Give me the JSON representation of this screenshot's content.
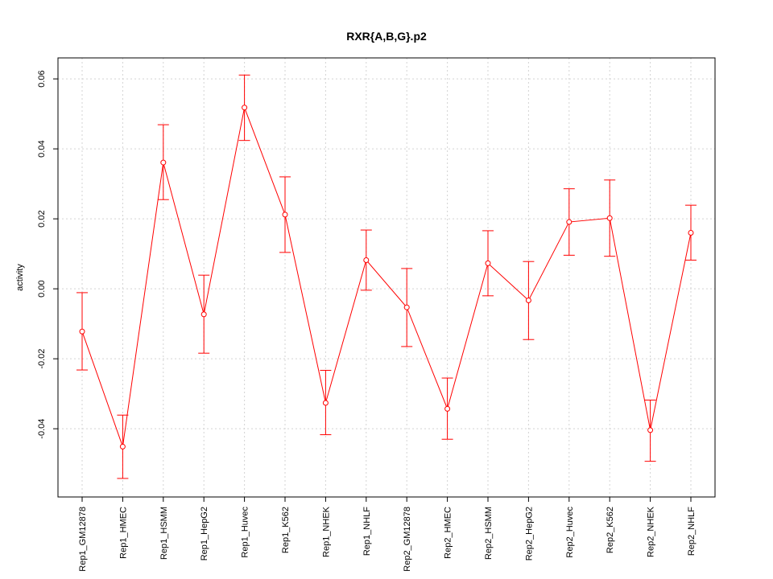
{
  "chart_data": {
    "type": "line",
    "title": "RXR{A,B,G}.p2",
    "xlabel": "",
    "ylabel": "activity",
    "ylim": [
      -0.0595,
      0.066
    ],
    "yticks": [
      -0.04,
      -0.02,
      0.0,
      0.02,
      0.04,
      0.06
    ],
    "ytick_labels": [
      "-0.04",
      "-0.02",
      "0.00",
      "0.02",
      "0.04",
      "0.06"
    ],
    "grid": true,
    "color": "#ff0000",
    "categories": [
      "Rep1_GM12878",
      "Rep1_HMEC",
      "Rep1_HSMM",
      "Rep1_HepG2",
      "Rep1_Huvec",
      "Rep1_K562",
      "Rep1_NHEK",
      "Rep1_NHLF",
      "Rep2_GM12878",
      "Rep2_HMEC",
      "Rep2_HSMM",
      "Rep2_HepG2",
      "Rep2_Huvec",
      "Rep2_K562",
      "Rep2_NHEK",
      "Rep2_NHLF"
    ],
    "values": [
      -0.0122,
      -0.0451,
      0.0361,
      -0.0073,
      0.0518,
      0.0212,
      -0.0326,
      0.0082,
      -0.0053,
      -0.0343,
      0.0073,
      -0.0033,
      0.0191,
      0.0202,
      -0.0404,
      0.016
    ],
    "upper": [
      -0.0011,
      -0.0361,
      0.0469,
      0.0039,
      0.0611,
      0.032,
      -0.0233,
      0.0168,
      0.0058,
      -0.0255,
      0.0166,
      0.0078,
      0.0286,
      0.0311,
      -0.0318,
      0.0239
    ],
    "lower": [
      -0.0232,
      -0.0542,
      0.0255,
      -0.0184,
      0.0424,
      0.0104,
      -0.0417,
      -0.0004,
      -0.0165,
      -0.043,
      -0.002,
      -0.0145,
      0.0096,
      0.0093,
      -0.0493,
      0.0082
    ]
  }
}
